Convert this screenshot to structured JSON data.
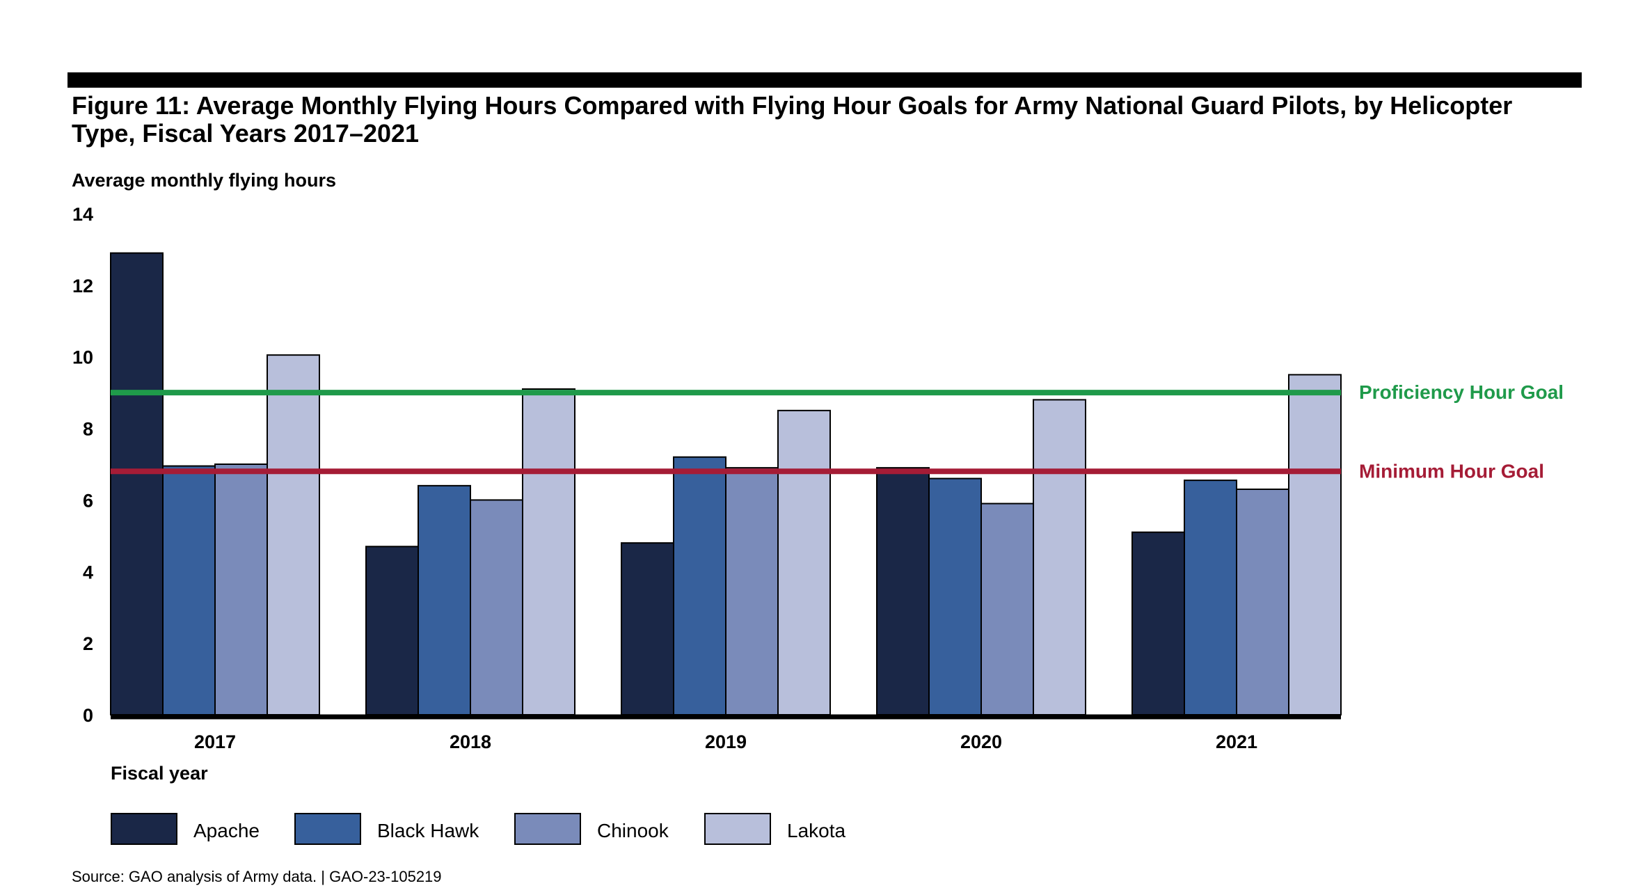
{
  "title": "Figure 11: Average Monthly Flying Hours Compared with Flying Hour Goals for Army National Guard Pilots, by Helicopter Type, Fiscal Years 2017–2021",
  "source": "Source: GAO analysis of Army data.  |  GAO-23-105219",
  "chart_data": {
    "type": "bar",
    "title": "Figure 11: Average Monthly Flying Hours Compared with Flying Hour Goals for Army National Guard Pilots, by Helicopter Type, Fiscal Years 2017–2021",
    "ylabel": "Average monthly flying hours",
    "xlabel": "Fiscal year",
    "ylim": [
      0,
      14
    ],
    "yticks": [
      0,
      2,
      4,
      6,
      8,
      10,
      12,
      14
    ],
    "grid": false,
    "legend_position": "bottom",
    "categories": [
      "2017",
      "2018",
      "2019",
      "2020",
      "2021"
    ],
    "series": [
      {
        "name": "Apache",
        "color": "#1a2747",
        "values": [
          12.9,
          4.7,
          4.8,
          6.9,
          5.1
        ]
      },
      {
        "name": "Black Hawk",
        "color": "#37609c",
        "values": [
          6.95,
          6.4,
          7.2,
          6.6,
          6.55
        ]
      },
      {
        "name": "Chinook",
        "color": "#7a8bba",
        "values": [
          7.0,
          6.0,
          6.9,
          5.9,
          6.3
        ]
      },
      {
        "name": "Lakota",
        "color": "#b8bfdb",
        "values": [
          10.05,
          9.1,
          8.5,
          8.8,
          9.5
        ]
      }
    ],
    "reference_lines": [
      {
        "name": "Proficiency Hour Goal",
        "value": 9.0,
        "color": "#1f9a4a"
      },
      {
        "name": "Minimum Hour Goal",
        "value": 6.8,
        "color": "#a51c36"
      }
    ]
  }
}
